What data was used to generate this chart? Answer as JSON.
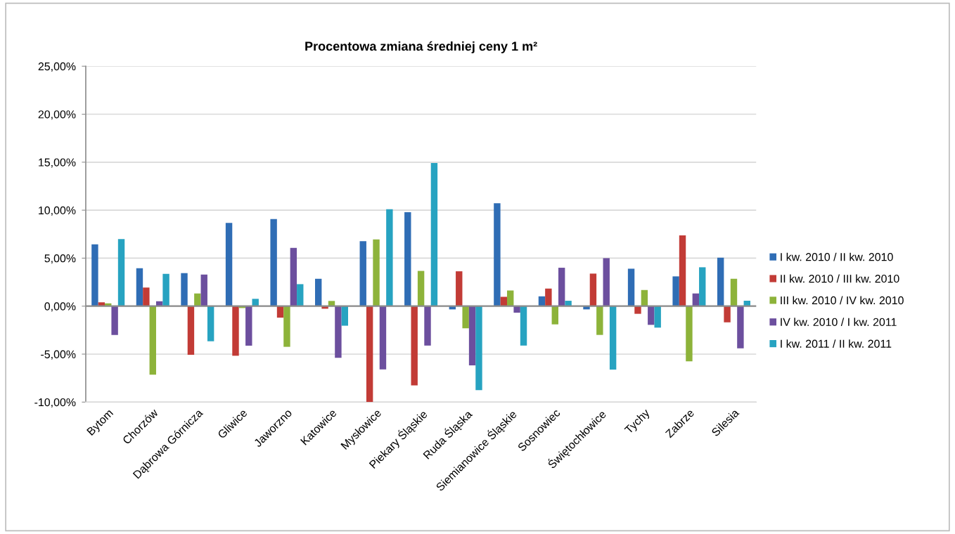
{
  "chart_data": {
    "type": "bar",
    "title": "Procentowa zmiana średniej ceny 1 m²",
    "categories": [
      "Bytom",
      "Chorzów",
      "Dąbrowa Górnicza",
      "Gliwice",
      "Jaworzno",
      "Katowice",
      "Mysłowice",
      "Piekary Śląskie",
      "Ruda Śląska",
      "Siemianowice Śląskie",
      "Sosnowiec",
      "Świętochłowice",
      "Tychy",
      "Zabrze",
      "Silesia"
    ],
    "series": [
      {
        "name": "I kw. 2010 / II kw. 2010",
        "color": "#2f6db5",
        "values": [
          6.44,
          3.95,
          3.44,
          8.68,
          9.07,
          2.85,
          6.76,
          9.78,
          -0.34,
          10.73,
          1.02,
          -0.34,
          3.9,
          3.1,
          5.05
        ]
      },
      {
        "name": "II kw. 2010 / III kw. 2010",
        "color": "#c23b36",
        "values": [
          0.39,
          1.93,
          -5.07,
          -5.17,
          -1.2,
          -0.27,
          -10.0,
          -8.25,
          3.63,
          0.97,
          1.83,
          3.39,
          -0.8,
          7.37,
          -1.68
        ]
      },
      {
        "name": "III kw. 2010 / IV kw. 2010",
        "color": "#8db33a",
        "values": [
          0.29,
          -7.15,
          1.32,
          -0.2,
          -4.24,
          0.54,
          6.96,
          3.67,
          -2.31,
          1.63,
          -1.9,
          -3.0,
          1.68,
          -5.76,
          2.85
        ]
      },
      {
        "name": "IV kw. 2010 / I kw. 2011",
        "color": "#6c4f9e",
        "values": [
          -3.0,
          0.51,
          3.29,
          -4.12,
          6.07,
          -5.38,
          -6.59,
          -4.11,
          -6.18,
          -0.68,
          4.0,
          5.0,
          -1.95,
          1.32,
          -4.39
        ]
      },
      {
        "name": "I kw. 2011 / II kw. 2011",
        "color": "#27a3c1",
        "values": [
          6.98,
          3.37,
          -3.66,
          0.76,
          2.29,
          -2.04,
          10.1,
          14.92,
          -8.76,
          -4.11,
          0.56,
          -6.61,
          -2.24,
          4.05,
          0.56
        ]
      }
    ],
    "ylim": [
      -10,
      25
    ],
    "yticks": [
      {
        "value": -10,
        "label": "-10,00%"
      },
      {
        "value": -5,
        "label": "-5,00%"
      },
      {
        "value": 0,
        "label": "0,00%"
      },
      {
        "value": 5,
        "label": "5,00%"
      },
      {
        "value": 10,
        "label": "10,00%"
      },
      {
        "value": 15,
        "label": "15,00%"
      },
      {
        "value": 20,
        "label": "20,00%"
      },
      {
        "value": 25,
        "label": "25,00%"
      }
    ],
    "grid": "y",
    "legend": "right"
  }
}
